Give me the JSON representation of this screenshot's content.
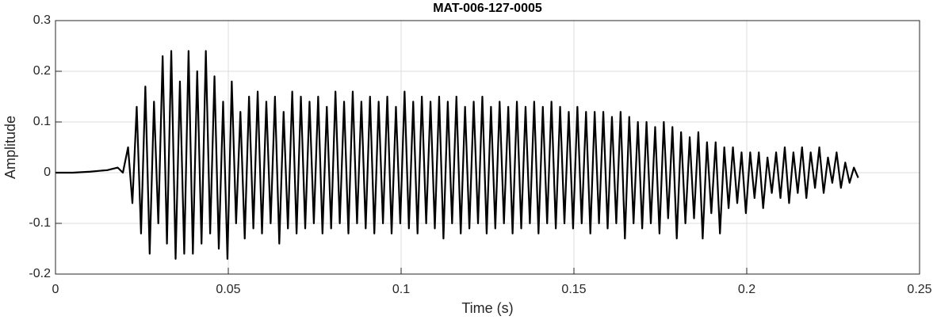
{
  "chart_data": {
    "type": "line",
    "title": "MAT-006-127-0005",
    "xlabel": "Time (s)",
    "ylabel": "Amplitude",
    "color": "#000000",
    "grid": true,
    "xlim": [
      0,
      0.25
    ],
    "xticks": [
      0,
      0.05,
      0.1,
      0.15,
      0.2,
      0.25
    ],
    "ylim": [
      -0.2,
      0.3
    ],
    "yticks": [
      -0.2,
      -0.1,
      0,
      0.1,
      0.2,
      0.3
    ],
    "x": [
      0,
      0.005,
      0.01,
      0.015,
      0.018,
      0.0195,
      0.021,
      0.02225,
      0.0235,
      0.02475,
      0.026,
      0.02725,
      0.0285,
      0.02975,
      0.031,
      0.03225,
      0.0335,
      0.03475,
      0.036,
      0.03725,
      0.0385,
      0.03975,
      0.041,
      0.04225,
      0.0435,
      0.04475,
      0.046,
      0.04725,
      0.0485,
      0.04975,
      0.051,
      0.05225,
      0.0535,
      0.05475,
      0.056,
      0.05725,
      0.0585,
      0.05975,
      0.061,
      0.06225,
      0.0635,
      0.06475,
      0.066,
      0.06725,
      0.0685,
      0.06975,
      0.071,
      0.07225,
      0.0735,
      0.07475,
      0.076,
      0.07725,
      0.0785,
      0.07975,
      0.081,
      0.08225,
      0.0835,
      0.08475,
      0.086,
      0.08725,
      0.0885,
      0.08975,
      0.091,
      0.09225,
      0.0935,
      0.09475,
      0.096,
      0.09725,
      0.0985,
      0.09975,
      0.101,
      0.10225,
      0.1035,
      0.10475,
      0.106,
      0.10725,
      0.1085,
      0.10975,
      0.111,
      0.11225,
      0.1135,
      0.11475,
      0.116,
      0.11725,
      0.1185,
      0.11975,
      0.121,
      0.12225,
      0.1235,
      0.12475,
      0.126,
      0.12725,
      0.1285,
      0.12975,
      0.131,
      0.13225,
      0.1335,
      0.13475,
      0.136,
      0.13725,
      0.1385,
      0.13975,
      0.141,
      0.14225,
      0.1435,
      0.14475,
      0.146,
      0.14725,
      0.1485,
      0.14975,
      0.151,
      0.15225,
      0.1535,
      0.15475,
      0.156,
      0.15725,
      0.1585,
      0.15975,
      0.161,
      0.16225,
      0.1635,
      0.16475,
      0.166,
      0.16725,
      0.1685,
      0.16975,
      0.171,
      0.17225,
      0.1735,
      0.17475,
      0.176,
      0.17725,
      0.1785,
      0.17975,
      0.181,
      0.18225,
      0.1835,
      0.18475,
      0.186,
      0.18725,
      0.1885,
      0.18975,
      0.191,
      0.19225,
      0.1935,
      0.19475,
      0.196,
      0.19725,
      0.1985,
      0.19975,
      0.201,
      0.20225,
      0.2035,
      0.20475,
      0.206,
      0.20725,
      0.2085,
      0.20975,
      0.211,
      0.21225,
      0.2135,
      0.21475,
      0.216,
      0.21725,
      0.2185,
      0.21975,
      0.221,
      0.22225,
      0.2235,
      0.22475,
      0.226,
      0.22725,
      0.2285,
      0.22975,
      0.231,
      0.23225
    ],
    "values": [
      0,
      0,
      0.002,
      0.005,
      0.01,
      0,
      0.05,
      -0.06,
      0.13,
      -0.12,
      0.17,
      -0.16,
      0.14,
      -0.1,
      0.23,
      -0.14,
      0.24,
      -0.17,
      0.18,
      -0.16,
      0.24,
      -0.16,
      0.2,
      -0.14,
      0.24,
      -0.12,
      0.19,
      -0.15,
      0.14,
      -0.17,
      0.18,
      -0.1,
      0.12,
      -0.13,
      0.15,
      -0.11,
      0.16,
      -0.12,
      0.14,
      -0.1,
      0.15,
      -0.14,
      0.12,
      -0.11,
      0.16,
      -0.12,
      0.15,
      -0.11,
      0.14,
      -0.1,
      0.15,
      -0.12,
      0.13,
      -0.11,
      0.16,
      -0.1,
      0.14,
      -0.12,
      0.16,
      -0.1,
      0.14,
      -0.11,
      0.15,
      -0.12,
      0.14,
      -0.1,
      0.15,
      -0.12,
      0.13,
      -0.1,
      0.16,
      -0.11,
      0.14,
      -0.12,
      0.15,
      -0.1,
      0.14,
      -0.11,
      0.15,
      -0.13,
      0.14,
      -0.1,
      0.15,
      -0.12,
      0.13,
      -0.11,
      0.14,
      -0.1,
      0.15,
      -0.12,
      0.13,
      -0.11,
      0.14,
      -0.1,
      0.13,
      -0.12,
      0.14,
      -0.11,
      0.13,
      -0.1,
      0.14,
      -0.12,
      0.13,
      -0.1,
      0.14,
      -0.11,
      0.13,
      -0.1,
      0.12,
      -0.11,
      0.13,
      -0.1,
      0.12,
      -0.12,
      0.12,
      -0.1,
      0.12,
      -0.11,
      0.11,
      -0.1,
      0.12,
      -0.13,
      0.11,
      -0.1,
      0.1,
      -0.11,
      0.1,
      -0.1,
      0.09,
      -0.12,
      0.1,
      -0.09,
      0.09,
      -0.13,
      0.08,
      -0.1,
      0.07,
      -0.09,
      0.08,
      -0.13,
      0.06,
      -0.08,
      0.06,
      -0.12,
      0.05,
      -0.07,
      0.05,
      -0.06,
      0.04,
      -0.08,
      0.04,
      -0.05,
      0.04,
      -0.07,
      0.03,
      -0.04,
      0.04,
      -0.05,
      0.05,
      -0.06,
      0.04,
      -0.04,
      0.05,
      -0.05,
      0.04,
      -0.03,
      0.05,
      -0.04,
      0.03,
      -0.02,
      0.04,
      -0.03,
      0.02,
      -0.02,
      0.01,
      -0.01
    ]
  }
}
